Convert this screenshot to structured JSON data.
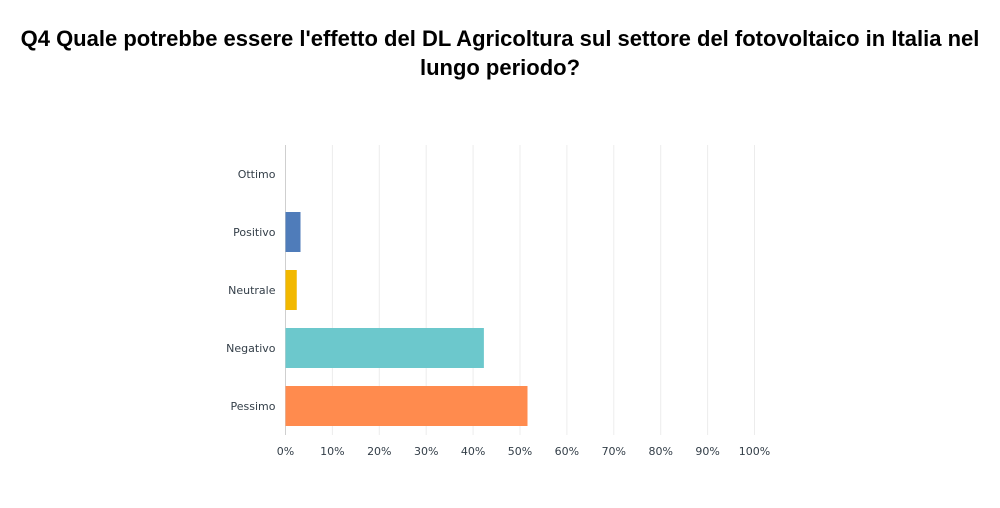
{
  "chart_data": {
    "type": "bar",
    "orientation": "horizontal",
    "title": "Q4 Quale potrebbe essere l'effetto del DL Agricoltura sul settore del fotovoltaico in Italia nel lungo periodo?",
    "categories": [
      "Ottimo",
      "Positivo",
      "Neutrale",
      "Negativo",
      "Pessimo"
    ],
    "values": [
      0,
      3.2,
      2.4,
      42.3,
      51.6
    ],
    "colors": [
      "#2c8fcc",
      "#4f7cba",
      "#f2b800",
      "#6cc8cc",
      "#ff8b4e"
    ],
    "xlim": [
      0,
      100
    ],
    "xticks": [
      "0%",
      "10%",
      "20%",
      "30%",
      "40%",
      "50%",
      "60%",
      "70%",
      "80%",
      "90%",
      "100%"
    ],
    "grid": true,
    "gridline_color": "#ececec",
    "axis_color": "#cfcfcf",
    "label_color": "#333e48"
  }
}
